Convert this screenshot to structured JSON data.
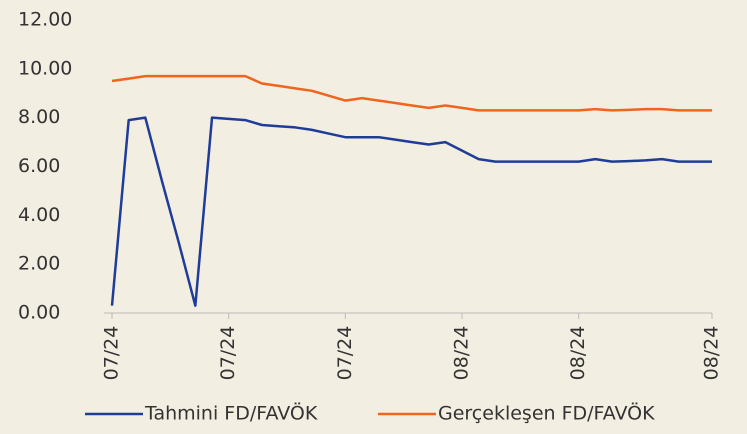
{
  "chart_data": {
    "type": "line",
    "categories": [
      "07/24",
      null,
      null,
      null,
      null,
      null,
      null,
      "07/24",
      null,
      null,
      null,
      null,
      null,
      null,
      "07/24",
      null,
      null,
      null,
      null,
      null,
      null,
      "08/24",
      null,
      null,
      null,
      null,
      null,
      null,
      "08/24",
      null,
      null,
      null,
      null,
      null,
      null,
      null,
      "08/24"
    ],
    "series": [
      {
        "name": "Tahmini FD/FAVÖK",
        "color": "#1f3c99",
        "values": [
          0.3,
          7.9,
          8.0,
          5.4,
          2.9,
          0.3,
          8.0,
          7.95,
          7.9,
          7.7,
          7.65,
          7.6,
          7.5,
          7.35,
          7.2,
          7.2,
          7.2,
          7.1,
          7.0,
          6.9,
          7.0,
          6.65,
          6.3,
          6.2,
          6.2,
          6.2,
          6.2,
          6.2,
          6.2,
          6.3,
          6.2,
          6.22,
          6.25,
          6.3,
          6.2,
          6.2,
          6.2
        ]
      },
      {
        "name": "Gerçekleşen FD/FAVÖK",
        "color": "#f0641e",
        "values": [
          9.5,
          9.6,
          9.7,
          9.7,
          9.7,
          9.7,
          9.7,
          9.7,
          9.7,
          9.4,
          9.3,
          9.2,
          9.1,
          8.9,
          8.7,
          8.8,
          8.7,
          8.6,
          8.5,
          8.4,
          8.5,
          8.4,
          8.3,
          8.3,
          8.3,
          8.3,
          8.3,
          8.3,
          8.3,
          8.35,
          8.3,
          8.32,
          8.35,
          8.35,
          8.3,
          8.3,
          8.3
        ]
      }
    ],
    "ylim": [
      0,
      12
    ],
    "yticks": [
      {
        "value": 0,
        "label": "0.00"
      },
      {
        "value": 2,
        "label": "2.00"
      },
      {
        "value": 4,
        "label": "4.00"
      },
      {
        "value": 6,
        "label": "6.00"
      },
      {
        "value": 8,
        "label": "8.00"
      },
      {
        "value": 10,
        "label": "10.00"
      },
      {
        "value": 12,
        "label": "12.00"
      }
    ],
    "grid": false,
    "legend": "bottom"
  }
}
